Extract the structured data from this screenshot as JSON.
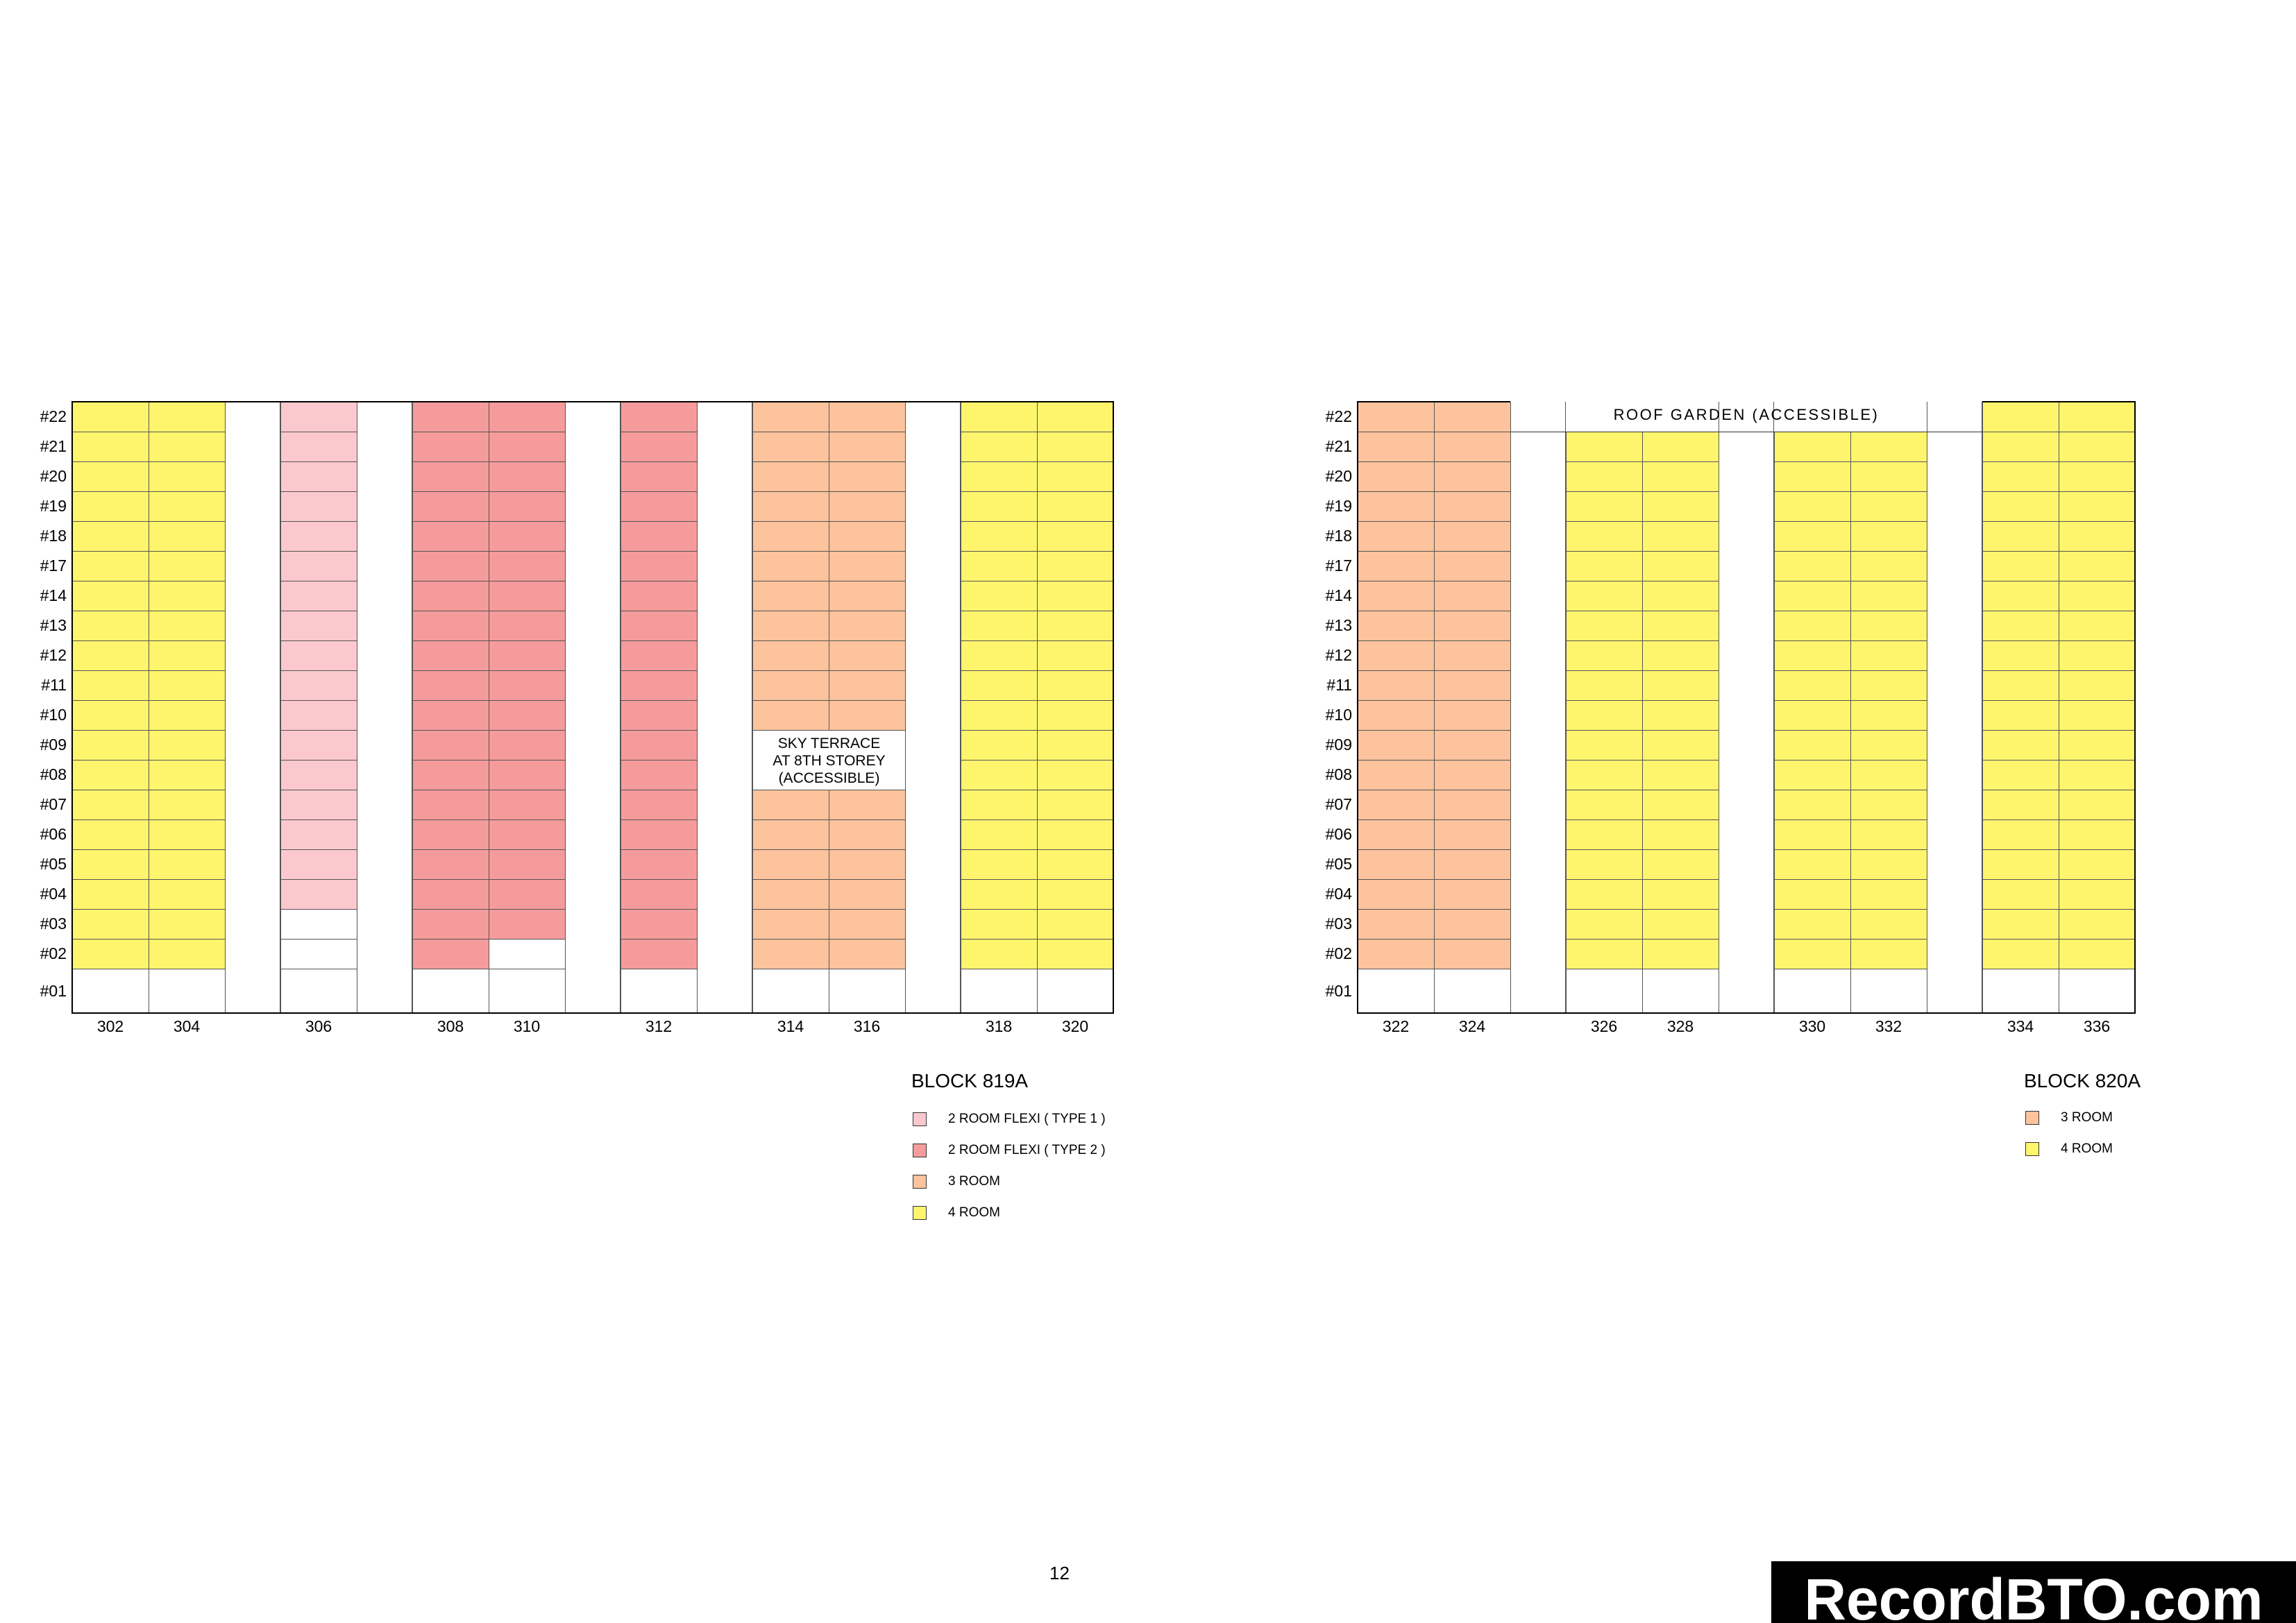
{
  "colors": {
    "2_room_flexi_type_1": "#FBC9CD",
    "2_room_flexi_type_2": "#F59B9B",
    "3_room": "#FCC39C",
    "4_room": "#FFF56C",
    "empty": "#FFFFFF"
  },
  "floors": [
    "#22",
    "#21",
    "#20",
    "#19",
    "#18",
    "#17",
    "#14",
    "#13",
    "#12",
    "#11",
    "#10",
    "#09",
    "#08",
    "#07",
    "#06",
    "#05",
    "#04",
    "#03",
    "#02",
    "#01"
  ],
  "blocks": [
    {
      "id": "819A",
      "title": "BLOCK 819A",
      "legend": [
        {
          "label": "2 ROOM FLEXI (  TYPE 1 )",
          "type": "2_room_flexi_type_1"
        },
        {
          "label": "2 ROOM FLEXI (  TYPE 2 )",
          "type": "2_room_flexi_type_2"
        },
        {
          "label": "3 ROOM",
          "type": "3_room"
        },
        {
          "label": "4 ROOM",
          "type": "4_room"
        }
      ],
      "units": [
        {
          "number": "302",
          "type": "4_room",
          "lowest_floor": "#02"
        },
        {
          "number": "304",
          "type": "4_room",
          "lowest_floor": "#02"
        },
        {
          "number": "306",
          "type": "2_room_flexi_type_1",
          "lowest_floor": "#04"
        },
        {
          "number": "308",
          "type": "2_room_flexi_type_2",
          "lowest_floor": "#02"
        },
        {
          "number": "310",
          "type": "2_room_flexi_type_2",
          "lowest_floor": "#03"
        },
        {
          "number": "312",
          "type": "2_room_flexi_type_2",
          "lowest_floor": "#02"
        },
        {
          "number": "314",
          "type": "3_room",
          "lowest_floor": "#02"
        },
        {
          "number": "316",
          "type": "3_room",
          "lowest_floor": "#02"
        },
        {
          "number": "318",
          "type": "4_room",
          "lowest_floor": "#02"
        },
        {
          "number": "320",
          "type": "4_room",
          "lowest_floor": "#02"
        }
      ],
      "sky_terrace": {
        "units": [
          "314",
          "316"
        ],
        "floors": [
          "#09",
          "#08"
        ],
        "lines": [
          "SKY TERRACE",
          "AT 8TH STOREY",
          "(ACCESSIBLE)"
        ]
      }
    },
    {
      "id": "820A",
      "title": "BLOCK 820A",
      "legend": [
        {
          "label": "3 ROOM",
          "type": "3_room"
        },
        {
          "label": "4 ROOM",
          "type": "4_room"
        }
      ],
      "units": [
        {
          "number": "322",
          "type": "3_room",
          "lowest_floor": "#02"
        },
        {
          "number": "324",
          "type": "3_room",
          "lowest_floor": "#02"
        },
        {
          "number": "326",
          "type": "4_room",
          "lowest_floor": "#02",
          "highest_floor": "#21"
        },
        {
          "number": "328",
          "type": "4_room",
          "lowest_floor": "#02",
          "highest_floor": "#21"
        },
        {
          "number": "330",
          "type": "4_room",
          "lowest_floor": "#02",
          "highest_floor": "#21"
        },
        {
          "number": "332",
          "type": "4_room",
          "lowest_floor": "#02",
          "highest_floor": "#21"
        },
        {
          "number": "334",
          "type": "4_room",
          "lowest_floor": "#02"
        },
        {
          "number": "336",
          "type": "4_room",
          "lowest_floor": "#02"
        }
      ],
      "roof_garden": "ROOF GARDEN (ACCESSIBLE)"
    }
  ],
  "page_number": "12",
  "watermark": "RecordBTO.com"
}
